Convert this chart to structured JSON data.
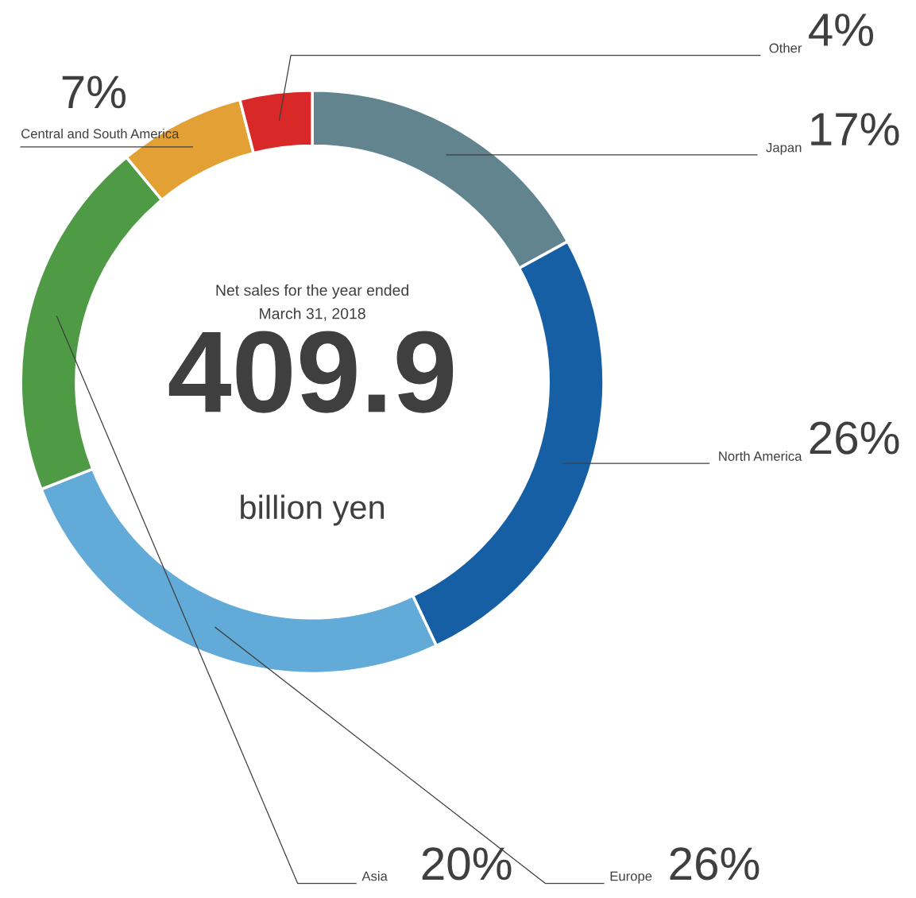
{
  "chart_data": {
    "type": "donut",
    "categories": [
      "Japan",
      "North America",
      "Europe",
      "Asia",
      "Central and South America",
      "Other"
    ],
    "values": [
      17,
      26,
      26,
      20,
      7,
      4
    ],
    "colors": [
      "#62848f",
      "#165fa5",
      "#62aad8",
      "#4f9a45",
      "#e3a035",
      "#d92828"
    ],
    "value_labels": [
      "17%",
      "26%",
      "26%",
      "20%",
      "7%",
      "4%"
    ],
    "annotations": [
      "Net sales for the year ended\nMarch 31, 2018",
      "409.9",
      "billion yen"
    ],
    "legend": false
  }
}
